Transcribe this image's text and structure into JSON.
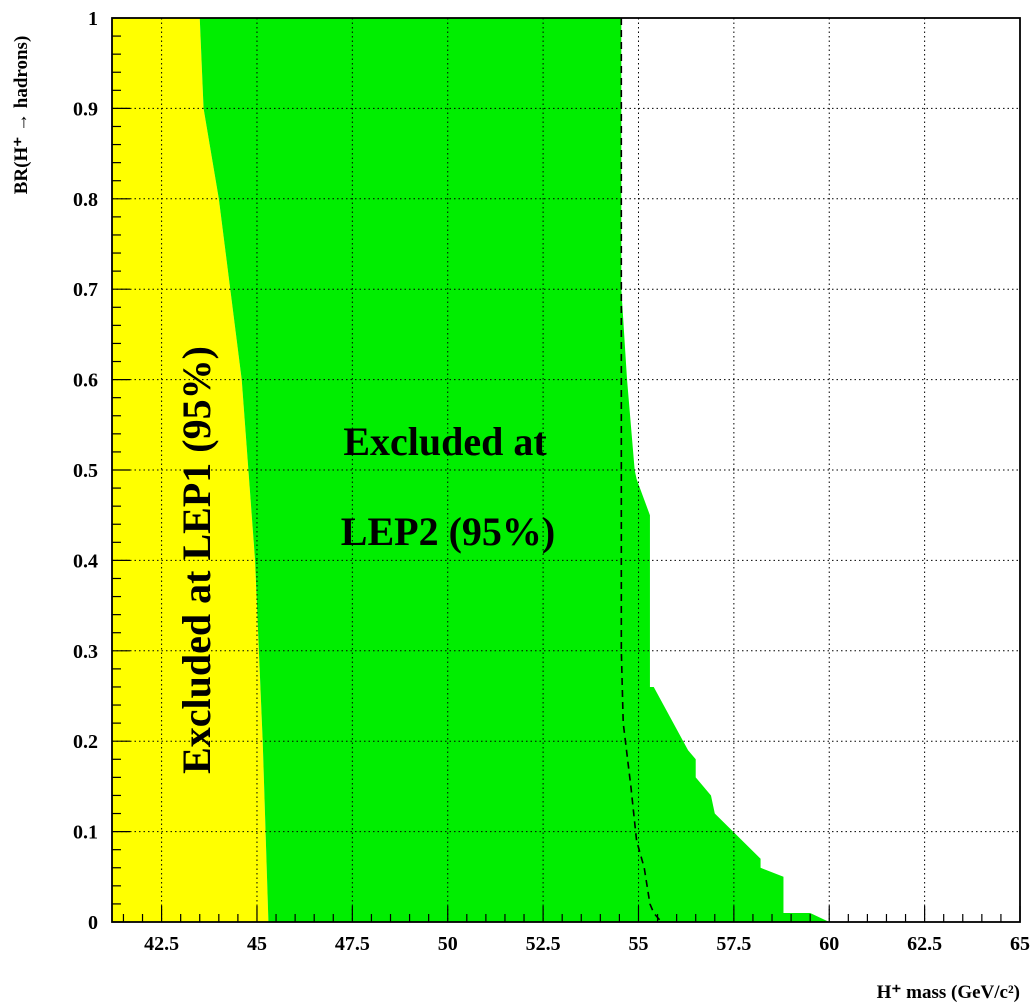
{
  "chart_data": {
    "type": "area",
    "xlabel": "H⁺ mass (GeV/c²)",
    "ylabel": "BR(H⁺ → hadrons)",
    "xlim": [
      41.2,
      65
    ],
    "ylim": [
      0,
      1
    ],
    "x_ticks": [
      "42.5",
      "45",
      "47.5",
      "50",
      "52.5",
      "55",
      "57.5",
      "60",
      "62.5",
      "65"
    ],
    "y_ticks": [
      "0",
      "0.1",
      "0.2",
      "0.3",
      "0.4",
      "0.5",
      "0.6",
      "0.7",
      "0.8",
      "0.9",
      "1"
    ],
    "grid": true,
    "colors": {
      "lep1": "#ffff00",
      "lep2": "#00ee00",
      "line": "#000000"
    },
    "series": [
      {
        "name": "Excluded at LEP1 (95%)",
        "kind": "region",
        "x": [
          43.5,
          43.6,
          44.0,
          44.6,
          44.95,
          45.15,
          45.3
        ],
        "y": [
          1.0,
          0.9,
          0.8,
          0.6,
          0.4,
          0.2,
          0.0
        ]
      },
      {
        "name": "Excluded at LEP2 (95%)",
        "kind": "region",
        "x": [
          54.55,
          54.55,
          54.7,
          54.9,
          54.95,
          55.3,
          55.3,
          55.4,
          56.3,
          56.5,
          56.5,
          56.9,
          57.0,
          58.2,
          58.2,
          58.8,
          58.8,
          59.5,
          60.0
        ],
        "y": [
          1.0,
          0.7,
          0.6,
          0.5,
          0.49,
          0.45,
          0.26,
          0.26,
          0.19,
          0.18,
          0.16,
          0.14,
          0.12,
          0.07,
          0.06,
          0.05,
          0.01,
          0.01,
          0.0
        ]
      },
      {
        "name": "expected limit",
        "kind": "dashed-line",
        "x": [
          54.55,
          54.55,
          54.6,
          54.8,
          54.95,
          55.15,
          55.3,
          55.4,
          55.6
        ],
        "y": [
          1.0,
          0.3,
          0.22,
          0.15,
          0.09,
          0.06,
          0.02,
          0.01,
          0.0
        ]
      }
    ],
    "annotations": [
      "Excluded at",
      "LEP2 (95%)",
      "Excluded at LEP1 (95%)"
    ]
  }
}
